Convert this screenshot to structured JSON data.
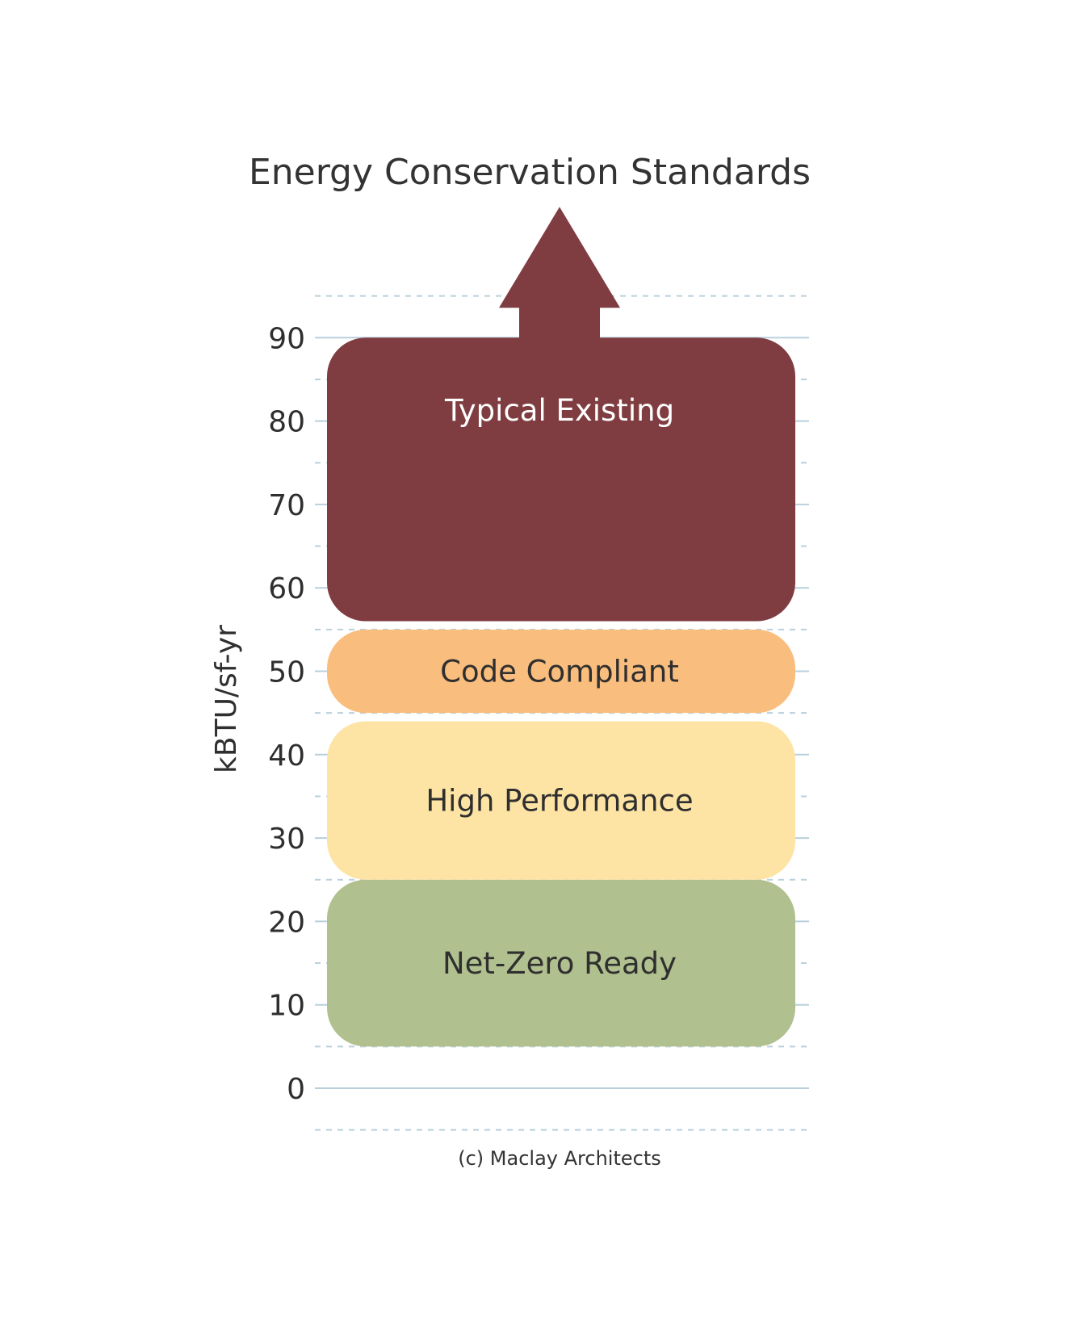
{
  "chart_data": {
    "type": "bar",
    "title": "Energy Conservation Standards",
    "ylabel": "kBTU/sf-yr",
    "ylim": [
      0,
      90
    ],
    "y_ticks": [
      "0",
      "10",
      "20",
      "30",
      "40",
      "50",
      "60",
      "70",
      "80",
      "90"
    ],
    "grid": true,
    "series": [
      {
        "name": "Net-Zero Ready",
        "range": [
          5,
          25
        ],
        "color": "#b1c08f",
        "label_color": "#2f2f2f"
      },
      {
        "name": "High Performance",
        "range": [
          25,
          44
        ],
        "color": "#fde4a5",
        "label_color": "#2f2f2f"
      },
      {
        "name": "Code Compliant",
        "range": [
          45,
          55
        ],
        "color": "#f9bd7d",
        "label_color": "#2f2f2f"
      },
      {
        "name": "Typical Existing",
        "range": [
          56,
          90
        ],
        "open_ended": true,
        "color": "#7f3d41",
        "label_color": "#ffffff"
      }
    ],
    "gridline_color": "#b9d0dc"
  },
  "credit": "(c) Maclay Architects"
}
